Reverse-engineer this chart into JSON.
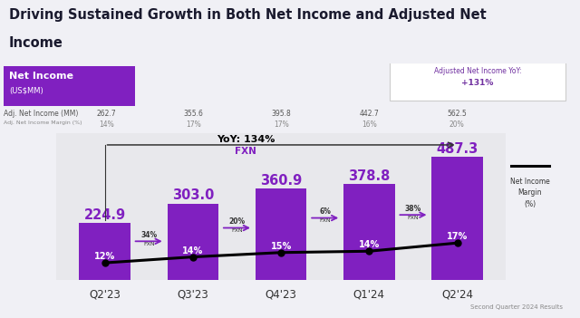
{
  "title_line1": "Driving Sustained Growth in Both Net Income and Adjusted Net",
  "title_line2": "Income",
  "background_color": "#f0f0f5",
  "chart_bg": "#e8e8ec",
  "categories": [
    "Q2'23",
    "Q3'23",
    "Q4'23",
    "Q1'24",
    "Q2'24"
  ],
  "bar_values": [
    224.9,
    303.0,
    360.9,
    378.8,
    487.3
  ],
  "bar_color": "#8020c0",
  "adj_net_income": [
    262.7,
    355.6,
    395.8,
    442.7,
    562.5
  ],
  "adj_net_margin": [
    "14%",
    "17%",
    "17%",
    "16%",
    "20%"
  ],
  "net_income_margin": [
    12,
    14,
    15,
    14,
    17
  ],
  "net_income_margin_labels": [
    "12%",
    "14%",
    "15%",
    "14%",
    "17%"
  ],
  "header_bg": "#8020c0",
  "adj_yoy_text1": "Adjusted Net Income YoY:",
  "adj_yoy_text2": "+131%",
  "yoy_pct": "YoY: 134%",
  "yoy_fxn": "FXN",
  "fxn_pcts": [
    "34%",
    "20%",
    "6%",
    "38%"
  ],
  "legend_line_label": "Net Income\nMargin\n(%)",
  "footer": "Second Quarter 2024 Results"
}
